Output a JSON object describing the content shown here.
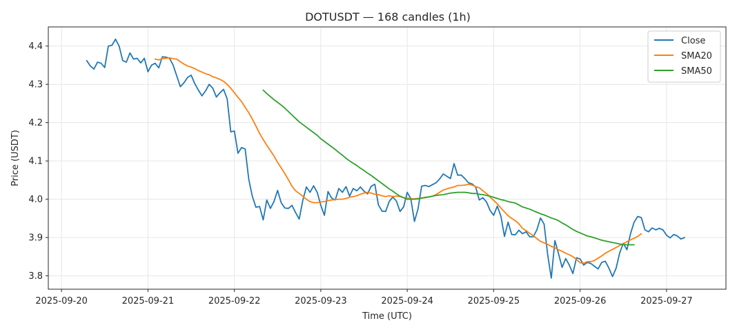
{
  "chart_data": {
    "type": "line",
    "title": "DOTUSDT — 168 candles (1h)",
    "xlabel": "Time (UTC)",
    "ylabel": "Price (USDT)",
    "x_ticks": [
      "2025-09-20",
      "2025-09-21",
      "2025-09-22",
      "2025-09-23",
      "2025-09-24",
      "2025-09-25",
      "2025-09-26",
      "2025-09-27"
    ],
    "y_ticks": [
      3.8,
      3.9,
      4.0,
      4.1,
      4.2,
      4.3,
      4.4
    ],
    "xlim": [
      "2025-09-19 20:20",
      "2025-09-27 16:30"
    ],
    "ylim": [
      3.765,
      4.45
    ],
    "grid": true,
    "legend_position": "top-right",
    "start_time": "2025-09-20 07:00",
    "interval": "1h",
    "series": [
      {
        "name": "Close",
        "color": "#1f77b4",
        "values": [
          4.362,
          4.348,
          4.34,
          4.358,
          4.355,
          4.344,
          4.4,
          4.402,
          4.418,
          4.4,
          4.362,
          4.358,
          4.382,
          4.366,
          4.368,
          4.356,
          4.368,
          4.333,
          4.35,
          4.355,
          4.343,
          4.372,
          4.371,
          4.368,
          4.35,
          4.322,
          4.294,
          4.304,
          4.318,
          4.324,
          4.302,
          4.285,
          4.27,
          4.283,
          4.3,
          4.29,
          4.267,
          4.278,
          4.287,
          4.262,
          4.176,
          4.178,
          4.12,
          4.135,
          4.131,
          4.052,
          4.007,
          3.979,
          3.981,
          3.946,
          3.998,
          3.976,
          3.994,
          4.023,
          3.991,
          3.977,
          3.976,
          3.984,
          3.965,
          3.948,
          3.997,
          4.032,
          4.018,
          4.035,
          4.018,
          3.984,
          3.958,
          4.02,
          4.003,
          3.998,
          4.028,
          4.018,
          4.033,
          4.008,
          4.028,
          4.022,
          4.032,
          4.021,
          4.014,
          4.034,
          4.039,
          3.985,
          3.969,
          3.968,
          3.994,
          4.006,
          3.995,
          3.968,
          3.98,
          4.018,
          4.001,
          3.942,
          3.975,
          4.034,
          4.036,
          4.033,
          4.038,
          4.043,
          4.053,
          4.066,
          4.06,
          4.054,
          4.093,
          4.063,
          4.063,
          4.054,
          4.043,
          4.04,
          4.032,
          3.998,
          4.004,
          3.993,
          3.971,
          3.958,
          3.982,
          3.956,
          3.903,
          3.94,
          3.908,
          3.907,
          3.919,
          3.91,
          3.915,
          3.902,
          3.902,
          3.92,
          3.951,
          3.935,
          3.855,
          3.794,
          3.892,
          3.858,
          3.822,
          3.845,
          3.828,
          3.806,
          3.847,
          3.844,
          3.828,
          3.835,
          3.832,
          3.825,
          3.818,
          3.835,
          3.838,
          3.82,
          3.798,
          3.82,
          3.86,
          3.885,
          3.868,
          3.91,
          3.94,
          3.955,
          3.952,
          3.92,
          3.915,
          3.925,
          3.92,
          3.924,
          3.92,
          3.906,
          3.899,
          3.908,
          3.904,
          3.896,
          3.9
        ]
      },
      {
        "name": "SMA20",
        "color": "#ff7f0e",
        "start_index": 19,
        "values": [
          4.366,
          4.364,
          4.367,
          4.368,
          4.369,
          4.367,
          4.366,
          4.359,
          4.353,
          4.348,
          4.345,
          4.341,
          4.336,
          4.332,
          4.328,
          4.325,
          4.32,
          4.317,
          4.313,
          4.308,
          4.3,
          4.29,
          4.278,
          4.266,
          4.255,
          4.24,
          4.226,
          4.209,
          4.191,
          4.172,
          4.156,
          4.141,
          4.127,
          4.113,
          4.096,
          4.082,
          4.067,
          4.051,
          4.034,
          4.022,
          4.015,
          4.008,
          4.0,
          3.994,
          3.991,
          3.991,
          3.993,
          3.994,
          3.996,
          3.998,
          3.999,
          4.0,
          4.0,
          4.002,
          4.005,
          4.007,
          4.009,
          4.013,
          4.016,
          4.018,
          4.016,
          4.013,
          4.012,
          4.009,
          4.007,
          4.009,
          4.007,
          4.008,
          4.007,
          4.004,
          4.003,
          4.001,
          4.001,
          4.002,
          4.003,
          4.004,
          4.006,
          4.008,
          4.012,
          4.018,
          4.024,
          4.027,
          4.03,
          4.032,
          4.036,
          4.036,
          4.037,
          4.039,
          4.037,
          4.033,
          4.03,
          4.022,
          4.015,
          4.006,
          3.997,
          3.988,
          3.977,
          3.967,
          3.957,
          3.95,
          3.944,
          3.936,
          3.924,
          3.918,
          3.911,
          3.905,
          3.897,
          3.89,
          3.886,
          3.882,
          3.877,
          3.873,
          3.868,
          3.864,
          3.859,
          3.855,
          3.85,
          3.843,
          3.834,
          3.833,
          3.837,
          3.837,
          3.84,
          3.846,
          3.852,
          3.859,
          3.864,
          3.869,
          3.874,
          3.879,
          3.884,
          3.889,
          3.894,
          3.898,
          3.903,
          3.91
        ]
      },
      {
        "name": "SMA50",
        "color": "#2ca02c",
        "start_index": 49,
        "values": [
          4.285,
          4.276,
          4.268,
          4.26,
          4.253,
          4.246,
          4.238,
          4.229,
          4.22,
          4.211,
          4.202,
          4.195,
          4.188,
          4.181,
          4.174,
          4.167,
          4.158,
          4.151,
          4.144,
          4.137,
          4.13,
          4.122,
          4.115,
          4.107,
          4.1,
          4.094,
          4.088,
          4.081,
          4.075,
          4.068,
          4.062,
          4.055,
          4.048,
          4.041,
          4.034,
          4.027,
          4.021,
          4.014,
          4.008,
          4.004,
          4.0,
          4.0,
          4.0,
          4.001,
          4.003,
          4.005,
          4.006,
          4.008,
          4.01,
          4.011,
          4.012,
          4.014,
          4.016,
          4.017,
          4.018,
          4.018,
          4.018,
          4.017,
          4.015,
          4.015,
          4.013,
          4.012,
          4.01,
          4.008,
          4.005,
          4.002,
          3.999,
          3.997,
          3.994,
          3.992,
          3.99,
          3.985,
          3.98,
          3.977,
          3.974,
          3.97,
          3.966,
          3.962,
          3.959,
          3.955,
          3.951,
          3.948,
          3.944,
          3.938,
          3.933,
          3.927,
          3.921,
          3.916,
          3.912,
          3.908,
          3.904,
          3.902,
          3.899,
          3.896,
          3.893,
          3.891,
          3.889,
          3.887,
          3.885,
          3.883,
          3.882,
          3.881,
          3.881,
          3.881
        ]
      }
    ]
  }
}
